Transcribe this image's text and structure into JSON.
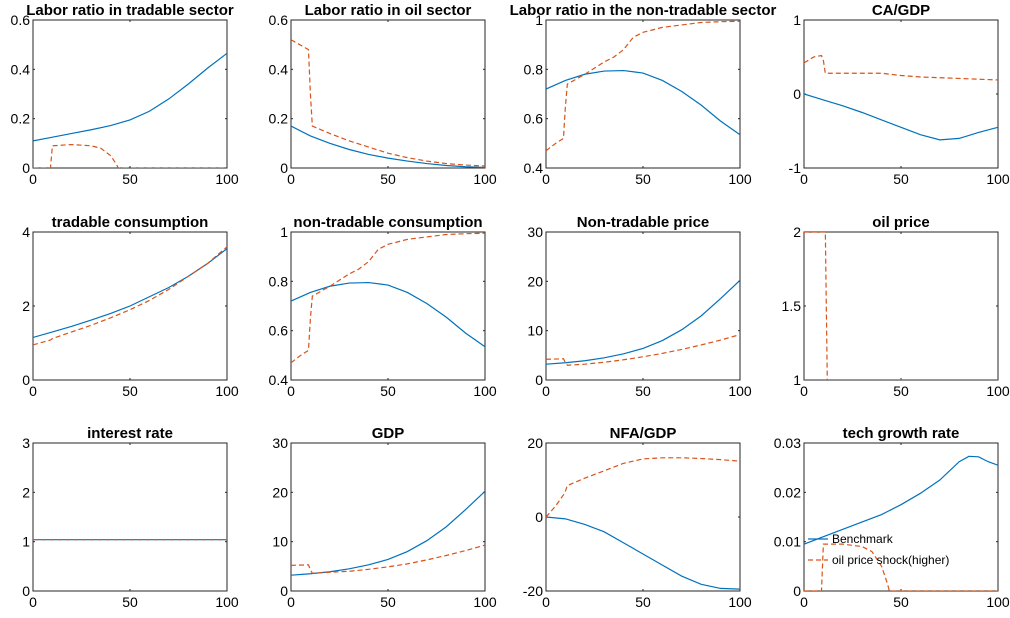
{
  "colors": {
    "benchmark": "#0072BD",
    "shock": "#D95319",
    "axis": "#262626"
  },
  "legend": {
    "items": [
      {
        "label": "Benchmark",
        "style": "solid",
        "color": "#0072BD"
      },
      {
        "label": "oil price shock(higher)",
        "style": "dashed",
        "color": "#D95319"
      }
    ],
    "placement": "bottom-left of last panel"
  },
  "chart_data": [
    {
      "type": "line",
      "title": "Labor ratio in tradable sector",
      "xlim": [
        0,
        100
      ],
      "ylim": [
        0,
        0.6
      ],
      "xticks": [
        0,
        50,
        100
      ],
      "yticks": [
        0,
        0.2,
        0.4,
        0.6
      ],
      "series": [
        {
          "name": "Benchmark",
          "style": "solid",
          "x": [
            0,
            10,
            20,
            30,
            40,
            50,
            60,
            70,
            80,
            90,
            100
          ],
          "y": [
            0.11,
            0.125,
            0.14,
            0.155,
            0.172,
            0.195,
            0.23,
            0.28,
            0.34,
            0.405,
            0.465
          ]
        },
        {
          "name": "oil price shock(higher)",
          "style": "dashed",
          "x": [
            0,
            9,
            10,
            20,
            30,
            35,
            40,
            43,
            44,
            45,
            60,
            80,
            100
          ],
          "y": [
            0,
            0,
            0.09,
            0.095,
            0.09,
            0.08,
            0.05,
            0.015,
            0,
            0,
            0,
            0,
            0
          ]
        }
      ]
    },
    {
      "type": "line",
      "title": "Labor ratio in oil sector",
      "xlim": [
        0,
        100
      ],
      "ylim": [
        0,
        0.6
      ],
      "xticks": [
        0,
        50,
        100
      ],
      "yticks": [
        0,
        0.2,
        0.4,
        0.6
      ],
      "series": [
        {
          "name": "Benchmark",
          "style": "solid",
          "x": [
            0,
            10,
            20,
            30,
            40,
            50,
            60,
            70,
            80,
            90,
            100
          ],
          "y": [
            0.17,
            0.13,
            0.1,
            0.075,
            0.055,
            0.04,
            0.028,
            0.018,
            0.01,
            0.005,
            0.002
          ]
        },
        {
          "name": "oil price shock(higher)",
          "style": "dashed",
          "x": [
            0,
            9,
            10,
            11,
            20,
            30,
            40,
            50,
            60,
            70,
            80,
            90,
            100
          ],
          "y": [
            0.52,
            0.48,
            0.3,
            0.17,
            0.14,
            0.11,
            0.085,
            0.06,
            0.042,
            0.028,
            0.018,
            0.012,
            0.008
          ]
        }
      ]
    },
    {
      "type": "line",
      "title": "Labor ratio in the non-tradable sector",
      "xlim": [
        0,
        100
      ],
      "ylim": [
        0.4,
        1
      ],
      "xticks": [
        0,
        50,
        100
      ],
      "yticks": [
        0.4,
        0.6,
        0.8,
        1
      ],
      "series": [
        {
          "name": "Benchmark",
          "style": "solid",
          "x": [
            0,
            10,
            20,
            30,
            40,
            50,
            60,
            70,
            80,
            90,
            100
          ],
          "y": [
            0.72,
            0.755,
            0.78,
            0.793,
            0.795,
            0.785,
            0.755,
            0.71,
            0.655,
            0.59,
            0.535
          ]
        },
        {
          "name": "oil price shock(higher)",
          "style": "dashed",
          "x": [
            0,
            5,
            9,
            10,
            11,
            20,
            30,
            35,
            40,
            45,
            50,
            60,
            70,
            80,
            90,
            100
          ],
          "y": [
            0.47,
            0.5,
            0.52,
            0.65,
            0.74,
            0.78,
            0.83,
            0.85,
            0.88,
            0.93,
            0.95,
            0.97,
            0.98,
            0.99,
            0.993,
            0.995
          ]
        }
      ]
    },
    {
      "type": "line",
      "title": "CA/GDP",
      "xlim": [
        0,
        100
      ],
      "ylim": [
        -1,
        1
      ],
      "xticks": [
        0,
        50,
        100
      ],
      "yticks": [
        -1,
        0,
        1
      ],
      "series": [
        {
          "name": "Benchmark",
          "style": "solid",
          "x": [
            0,
            10,
            20,
            30,
            40,
            50,
            60,
            70,
            80,
            90,
            100
          ],
          "y": [
            0,
            -0.08,
            -0.16,
            -0.25,
            -0.35,
            -0.45,
            -0.55,
            -0.62,
            -0.6,
            -0.52,
            -0.45
          ]
        },
        {
          "name": "oil price shock(higher)",
          "style": "dashed",
          "x": [
            0,
            5,
            9,
            10,
            11,
            20,
            30,
            40,
            50,
            60,
            70,
            80,
            90,
            100
          ],
          "y": [
            0.42,
            0.5,
            0.52,
            0.45,
            0.28,
            0.28,
            0.28,
            0.28,
            0.25,
            0.23,
            0.22,
            0.21,
            0.2,
            0.19
          ]
        }
      ]
    },
    {
      "type": "line",
      "title": "tradable consumption",
      "xlim": [
        0,
        100
      ],
      "ylim": [
        0,
        4
      ],
      "xticks": [
        0,
        50,
        100
      ],
      "yticks": [
        0,
        2,
        4
      ],
      "series": [
        {
          "name": "Benchmark",
          "style": "solid",
          "x": [
            0,
            10,
            20,
            30,
            40,
            50,
            60,
            70,
            80,
            90,
            100
          ],
          "y": [
            1.15,
            1.3,
            1.45,
            1.62,
            1.8,
            2.0,
            2.25,
            2.5,
            2.8,
            3.15,
            3.55
          ]
        },
        {
          "name": "oil price shock(higher)",
          "style": "dashed",
          "x": [
            0,
            9,
            10,
            20,
            30,
            40,
            50,
            60,
            70,
            80,
            90,
            100
          ],
          "y": [
            0.95,
            1.08,
            1.12,
            1.3,
            1.48,
            1.68,
            1.9,
            2.15,
            2.45,
            2.8,
            3.15,
            3.6
          ]
        }
      ]
    },
    {
      "type": "line",
      "title": "non-tradable consumption",
      "xlim": [
        0,
        100
      ],
      "ylim": [
        0.4,
        1
      ],
      "xticks": [
        0,
        50,
        100
      ],
      "yticks": [
        0.4,
        0.6,
        0.8,
        1
      ],
      "series": [
        {
          "name": "Benchmark",
          "style": "solid",
          "x": [
            0,
            10,
            20,
            30,
            40,
            50,
            60,
            70,
            80,
            90,
            100
          ],
          "y": [
            0.72,
            0.755,
            0.78,
            0.793,
            0.795,
            0.785,
            0.755,
            0.71,
            0.655,
            0.59,
            0.535
          ]
        },
        {
          "name": "oil price shock(higher)",
          "style": "dashed",
          "x": [
            0,
            5,
            9,
            10,
            11,
            20,
            30,
            35,
            40,
            45,
            50,
            60,
            70,
            80,
            90,
            100
          ],
          "y": [
            0.47,
            0.5,
            0.52,
            0.65,
            0.74,
            0.78,
            0.83,
            0.85,
            0.88,
            0.93,
            0.95,
            0.97,
            0.98,
            0.99,
            0.993,
            0.995
          ]
        }
      ]
    },
    {
      "type": "line",
      "title": "Non-tradable price",
      "xlim": [
        0,
        100
      ],
      "ylim": [
        0,
        30
      ],
      "xticks": [
        0,
        50,
        100
      ],
      "yticks": [
        0,
        10,
        20,
        30
      ],
      "series": [
        {
          "name": "Benchmark",
          "style": "solid",
          "x": [
            0,
            10,
            20,
            30,
            40,
            50,
            60,
            70,
            80,
            90,
            100
          ],
          "y": [
            3.2,
            3.5,
            3.9,
            4.5,
            5.3,
            6.4,
            8.0,
            10.2,
            13.0,
            16.5,
            20.2
          ]
        },
        {
          "name": "oil price shock(higher)",
          "style": "dashed",
          "x": [
            0,
            9,
            10,
            11,
            20,
            30,
            40,
            50,
            60,
            70,
            80,
            90,
            100
          ],
          "y": [
            4.2,
            4.3,
            3.5,
            3.0,
            3.2,
            3.6,
            4.1,
            4.7,
            5.4,
            6.2,
            7.1,
            8.1,
            9.2
          ]
        }
      ]
    },
    {
      "type": "line",
      "title": "oil price",
      "xlim": [
        0,
        100
      ],
      "ylim": [
        1,
        2
      ],
      "xticks": [
        0,
        50,
        100
      ],
      "yticks": [
        1,
        1.5,
        2
      ],
      "series": [
        {
          "name": "Benchmark",
          "style": "solid",
          "x": [
            0,
            100
          ],
          "y": [
            1,
            1
          ]
        },
        {
          "name": "oil price shock(higher)",
          "style": "dashed",
          "x": [
            0,
            10,
            11,
            12,
            100
          ],
          "y": [
            2,
            2,
            2,
            1,
            1
          ]
        }
      ]
    },
    {
      "type": "line",
      "title": "interest rate",
      "xlim": [
        0,
        100
      ],
      "ylim": [
        0,
        3
      ],
      "xticks": [
        0,
        50,
        100
      ],
      "yticks": [
        0,
        1,
        2,
        3
      ],
      "series": [
        {
          "name": "Benchmark",
          "style": "solid",
          "x": [
            0,
            100
          ],
          "y": [
            1.04,
            1.04
          ]
        },
        {
          "name": "oil price shock(higher)",
          "style": "dashed",
          "x": [
            0,
            100
          ],
          "y": [
            1.04,
            1.04
          ]
        }
      ]
    },
    {
      "type": "line",
      "title": "GDP",
      "xlim": [
        0,
        100
      ],
      "ylim": [
        0,
        30
      ],
      "xticks": [
        0,
        50,
        100
      ],
      "yticks": [
        0,
        10,
        20,
        30
      ],
      "series": [
        {
          "name": "Benchmark",
          "style": "solid",
          "x": [
            0,
            10,
            20,
            30,
            40,
            50,
            60,
            70,
            80,
            90,
            100
          ],
          "y": [
            3.2,
            3.5,
            3.9,
            4.5,
            5.3,
            6.4,
            8.0,
            10.2,
            13.0,
            16.5,
            20.2
          ]
        },
        {
          "name": "oil price shock(higher)",
          "style": "dashed",
          "x": [
            0,
            9,
            10,
            11,
            20,
            30,
            40,
            50,
            60,
            70,
            80,
            90,
            100
          ],
          "y": [
            5.2,
            5.3,
            4.3,
            3.6,
            3.8,
            4.0,
            4.4,
            4.9,
            5.5,
            6.3,
            7.2,
            8.2,
            9.3
          ]
        }
      ]
    },
    {
      "type": "line",
      "title": "NFA/GDP",
      "xlim": [
        0,
        100
      ],
      "ylim": [
        -20,
        20
      ],
      "xticks": [
        0,
        50,
        100
      ],
      "yticks": [
        -20,
        0,
        20
      ],
      "series": [
        {
          "name": "Benchmark",
          "style": "solid",
          "x": [
            0,
            10,
            20,
            30,
            40,
            50,
            60,
            70,
            80,
            90,
            100
          ],
          "y": [
            0,
            -0.5,
            -2,
            -4,
            -7,
            -10,
            -13,
            -16,
            -18.2,
            -19.3,
            -19.5
          ]
        },
        {
          "name": "oil price shock(higher)",
          "style": "dashed",
          "x": [
            0,
            5,
            9,
            10,
            11,
            20,
            30,
            40,
            50,
            60,
            70,
            80,
            90,
            100
          ],
          "y": [
            0,
            3,
            6,
            7,
            8.5,
            10.5,
            12.5,
            14.5,
            15.7,
            16,
            16,
            15.8,
            15.5,
            15.1
          ]
        }
      ]
    },
    {
      "type": "line",
      "title": "tech growth rate",
      "xlim": [
        0,
        100
      ],
      "ylim": [
        0,
        0.03
      ],
      "xticks": [
        0,
        50,
        100
      ],
      "yticks": [
        0,
        0.01,
        0.02,
        0.03
      ],
      "series": [
        {
          "name": "Benchmark",
          "style": "solid",
          "x": [
            0,
            10,
            20,
            30,
            40,
            50,
            60,
            70,
            80,
            85,
            90,
            95,
            100
          ],
          "y": [
            0.0095,
            0.011,
            0.0125,
            0.014,
            0.0155,
            0.0175,
            0.0198,
            0.0225,
            0.0262,
            0.0273,
            0.0272,
            0.0262,
            0.0255
          ]
        },
        {
          "name": "oil price shock(higher)",
          "style": "dashed",
          "x": [
            0,
            9,
            10,
            20,
            30,
            35,
            40,
            43,
            44,
            45,
            60,
            80,
            100
          ],
          "y": [
            0,
            0,
            0.0095,
            0.0095,
            0.009,
            0.008,
            0.005,
            0.0015,
            0,
            0,
            0,
            0,
            0
          ]
        }
      ]
    }
  ]
}
